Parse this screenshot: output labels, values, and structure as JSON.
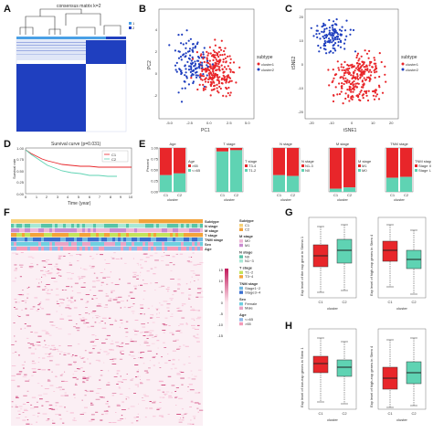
{
  "panels": {
    "A": {
      "letter": "A",
      "title": "consensus matrix k=2",
      "legend": [
        "1",
        "2"
      ]
    },
    "B": {
      "letter": "B",
      "xlabel": "PC1",
      "ylabel": "PC2",
      "legend_title": "subtype",
      "legend": [
        "cluster1",
        "cluster2"
      ],
      "xticks": [
        "-5.0",
        "-2.5",
        "0.0",
        "2.5",
        "5.0"
      ],
      "yticks": [
        "-2",
        "0",
        "2",
        "4"
      ]
    },
    "C": {
      "letter": "C",
      "xlabel": "tSNE1",
      "ylabel": "tSNE2",
      "legend_title": "subtype",
      "legend": [
        "cluster1",
        "cluster2"
      ],
      "xticks": [
        "-20",
        "-10",
        "0",
        "10",
        "20"
      ],
      "yticks": [
        "-20",
        "-10",
        "0",
        "10",
        "20"
      ]
    },
    "D": {
      "letter": "D",
      "title": "Survival curve (p=0.031)",
      "xlabel": "Time (year)",
      "ylabel": "Survival rate",
      "legend": [
        "C1",
        "C2"
      ],
      "xticks": [
        "0",
        "1",
        "2",
        "3",
        "4",
        "5",
        "6",
        "7",
        "8",
        "9",
        "10"
      ],
      "yticks": [
        "0.00",
        "0.25",
        "0.50",
        "0.75",
        "1.00"
      ]
    },
    "E": {
      "letter": "E",
      "bars": [
        {
          "title": "Age",
          "legend_title": "Age",
          "legend": [
            ">65",
            "<=65"
          ],
          "c1": 0.62,
          "c2": 0.58
        },
        {
          "title": "T stage",
          "legend_title": "T stage",
          "legend": [
            "T3-4",
            "T1-2"
          ],
          "c1": 0.08,
          "c2": 0.05
        },
        {
          "title": "N stage",
          "legend_title": "N stage",
          "legend": [
            "N1-3",
            "N0"
          ],
          "c1": 0.62,
          "c2": 0.64
        },
        {
          "title": "M stage",
          "legend_title": "M stage",
          "legend": [
            "M1",
            "M0"
          ],
          "c1": 0.93,
          "c2": 0.9
        },
        {
          "title": "TNM stage",
          "legend_title": "TNM stage",
          "legend": [
            "Stage III-IV",
            "Stage I-II"
          ],
          "c1": 0.68,
          "c2": 0.66
        }
      ],
      "xlabel": "cluster",
      "ylabel": "Percent",
      "categories": [
        "C1",
        "C2"
      ],
      "yticks": [
        "0.00",
        "0.25",
        "0.50",
        "0.75",
        "1.00"
      ]
    },
    "F": {
      "letter": "F",
      "row_labels": [
        "Subtype",
        "N stage",
        "M stage",
        "T stage",
        "TNM stage",
        "Sex",
        "Age"
      ],
      "legend_groups": [
        {
          "title": "Subtype",
          "items": [
            "C1",
            "C2"
          ]
        },
        {
          "title": "M stage",
          "items": [
            "M0",
            "M1"
          ]
        },
        {
          "title": "N stage",
          "items": [
            "N0",
            "N1~3"
          ]
        },
        {
          "title": "T stage",
          "items": [
            "T1~2",
            "T3~4"
          ]
        },
        {
          "title": "TNM stage",
          "items": [
            "Stage1~2",
            "Stage3~4"
          ]
        },
        {
          "title": "Sex",
          "items": [
            "Female",
            "Male"
          ]
        },
        {
          "title": "Age",
          "items": [
            "<=65",
            ">65"
          ]
        }
      ],
      "scale_ticks": [
        "15",
        "10",
        "5",
        "0",
        "-5",
        "-10",
        "-15"
      ]
    },
    "G": {
      "letter": "G",
      "xlabel": "cluster",
      "categories": [
        "C1",
        "C2"
      ],
      "ylabel_left": "Exp level of the exp gene in Stemn 1",
      "ylabel_right": "Exp level of high-exp genes in Stem 4"
    },
    "H": {
      "letter": "H",
      "xlabel": "cluster",
      "categories": [
        "C1",
        "C2"
      ],
      "ylabel_left": "Exp level of low-exp genes in Stem 1",
      "ylabel_right": "Exp level of high-exp genes in Stem 4"
    }
  },
  "colors": {
    "red": "#e8262a",
    "teal": "#5fd3b3",
    "blue": "#1f3fbf",
    "heat_hi": "#c2185b",
    "heat_lo": "#ffffff"
  }
}
